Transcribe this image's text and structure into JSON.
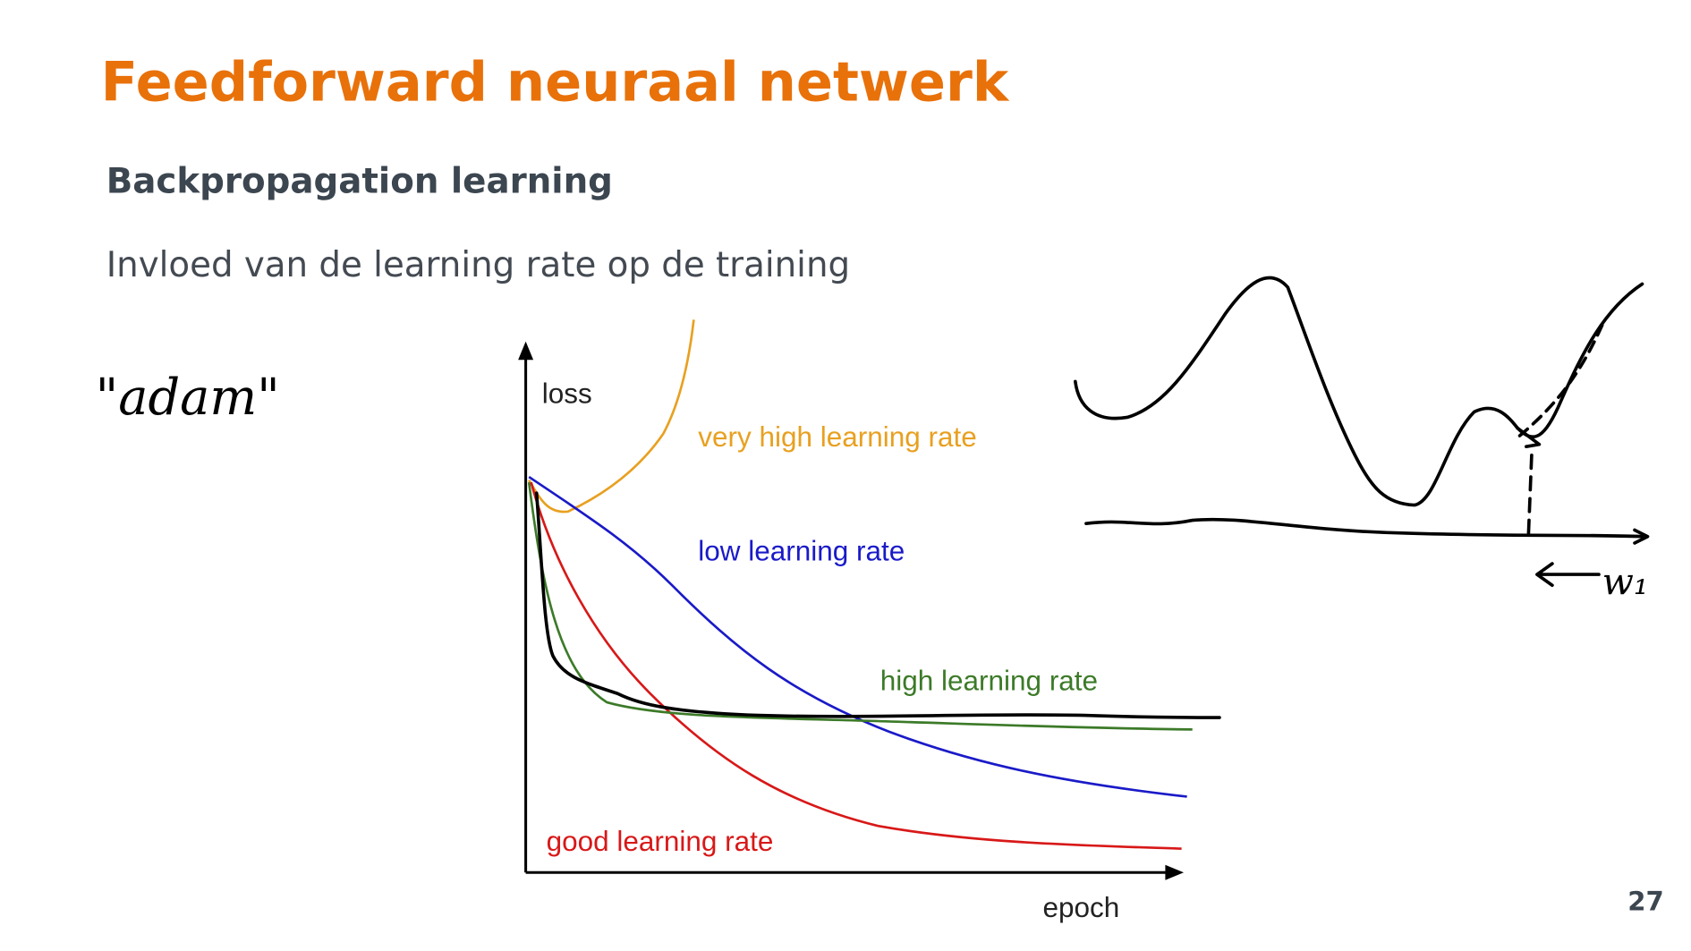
{
  "header": {
    "title": "Feedforward neuraal netwerk"
  },
  "section": {
    "heading": "Backpropagation learning",
    "text": "Invloed van de learning rate op de training"
  },
  "figure": {
    "y_label": "loss",
    "x_label": "epoch",
    "curve_labels": [
      "very high learning rate",
      "low learning rate",
      "high learning rate",
      "good learning rate"
    ]
  },
  "annotations": {
    "handwriting": "\"adam\"",
    "weight_axis": "w₁"
  },
  "page_number": "27"
}
